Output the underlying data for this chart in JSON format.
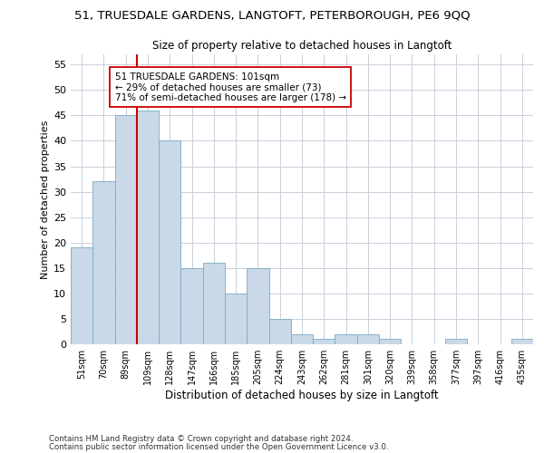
{
  "title_line1": "51, TRUESDALE GARDENS, LANGTOFT, PETERBOROUGH, PE6 9QQ",
  "title_line2": "Size of property relative to detached houses in Langtoft",
  "xlabel": "Distribution of detached houses by size in Langtoft",
  "ylabel": "Number of detached properties",
  "categories": [
    "51sqm",
    "70sqm",
    "89sqm",
    "109sqm",
    "128sqm",
    "147sqm",
    "166sqm",
    "185sqm",
    "205sqm",
    "224sqm",
    "243sqm",
    "262sqm",
    "281sqm",
    "301sqm",
    "320sqm",
    "339sqm",
    "358sqm",
    "377sqm",
    "397sqm",
    "416sqm",
    "435sqm"
  ],
  "values": [
    19,
    32,
    45,
    46,
    40,
    15,
    16,
    10,
    15,
    5,
    2,
    1,
    2,
    2,
    1,
    0,
    0,
    1,
    0,
    0,
    1
  ],
  "bar_color": "#c9d9e8",
  "bar_edge_color": "#7aaac8",
  "grid_color": "#c8d0db",
  "vline_color": "#cc0000",
  "vline_x_index": 2.5,
  "annotation_text": "51 TRUESDALE GARDENS: 101sqm\n← 29% of detached houses are smaller (73)\n71% of semi-detached houses are larger (178) →",
  "annotation_box_color": "#ffffff",
  "annotation_box_edge": "#cc0000",
  "ylim": [
    0,
    57
  ],
  "yticks": [
    0,
    5,
    10,
    15,
    20,
    25,
    30,
    35,
    40,
    45,
    50,
    55
  ],
  "footer_line1": "Contains HM Land Registry data © Crown copyright and database right 2024.",
  "footer_line2": "Contains public sector information licensed under the Open Government Licence v3.0.",
  "background_color": "#ffffff"
}
